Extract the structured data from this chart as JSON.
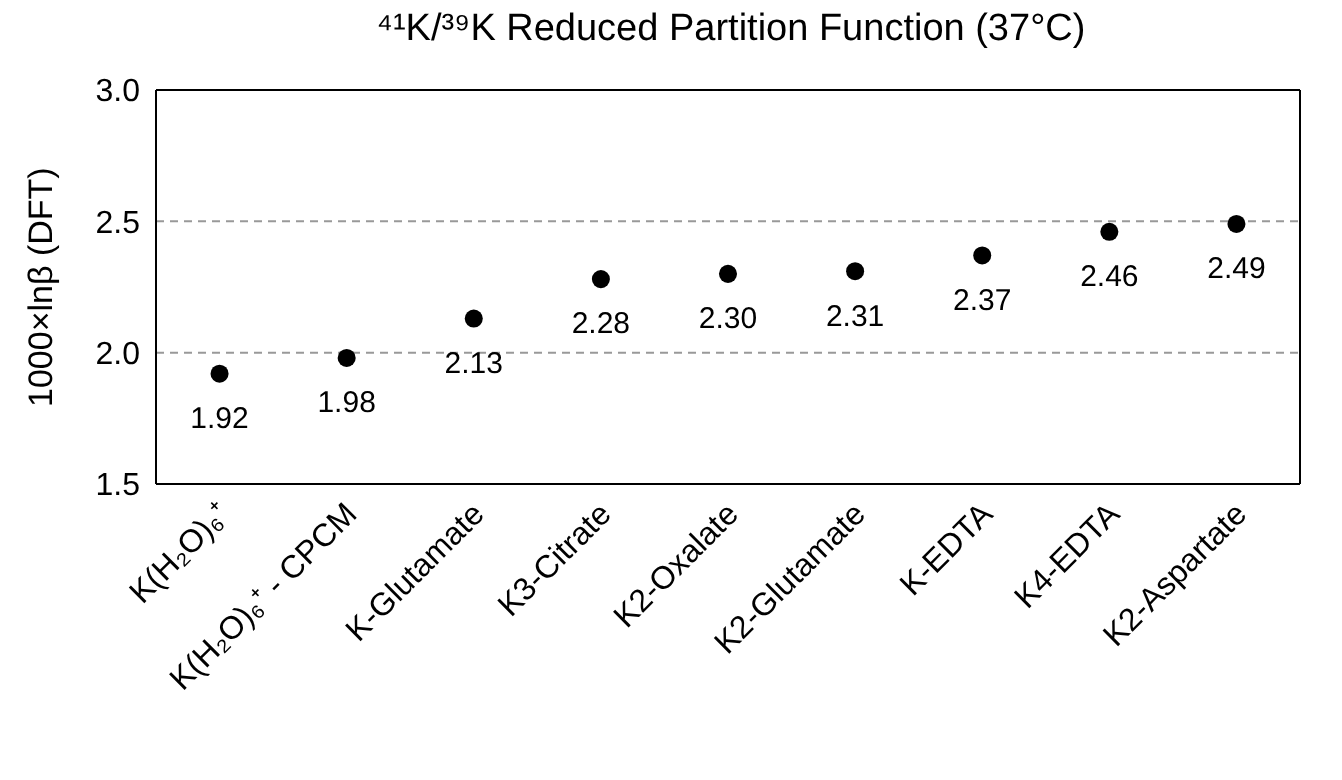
{
  "chart_data": {
    "type": "scatter",
    "title": "⁴¹K/³⁹K Reduced Partition Function (37°C)",
    "ylabel": "1000×lnβ (DFT)",
    "categories": [
      "K(H₂O)₆⁺",
      "K(H₂O)₆⁺ - CPCM",
      "K-Glutamate",
      "K3-Citrate",
      "K2-Oxalate",
      "K2-Glutamate",
      "K-EDTA",
      "K4-EDTA",
      "K2-Aspartate"
    ],
    "values": [
      1.92,
      1.98,
      2.13,
      2.28,
      2.3,
      2.31,
      2.37,
      2.46,
      2.49
    ],
    "value_labels": [
      "1.92",
      "1.98",
      "2.13",
      "2.28",
      "2.30",
      "2.31",
      "2.37",
      "2.46",
      "2.49"
    ],
    "color": "#000000",
    "marker": "circle",
    "ylim": [
      1.5,
      3.0
    ],
    "yticks": [
      {
        "value": 1.5,
        "label": "1.5"
      },
      {
        "value": 2.0,
        "label": "2.0"
      },
      {
        "value": 2.5,
        "label": "2.5"
      },
      {
        "value": 3.0,
        "label": "3.0"
      }
    ],
    "grid": "y"
  }
}
